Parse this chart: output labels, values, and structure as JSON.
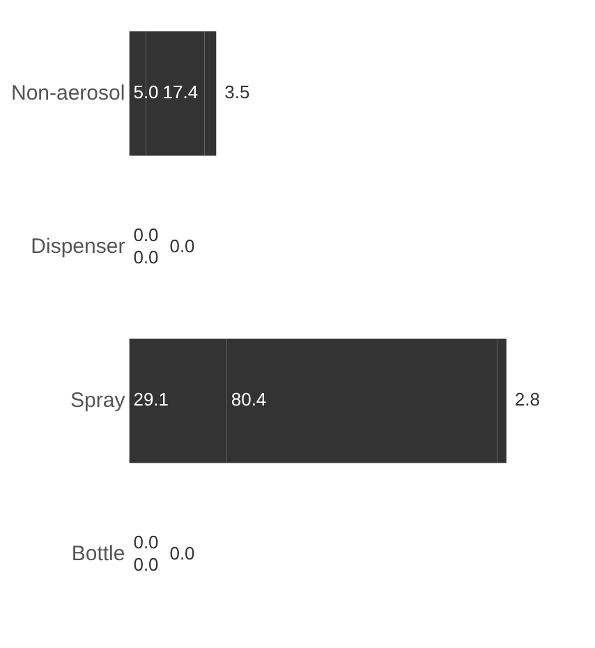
{
  "chart_data": {
    "type": "bar",
    "orientation": "horizontal",
    "stacked": true,
    "legend": false,
    "tick_labels": "y",
    "categories": [
      "Non-aerosol",
      "Dispenser",
      "Spray",
      "Bottle"
    ],
    "series": [
      {
        "color": "#333333",
        "values": [
          5.0,
          0.0,
          29.1,
          0.0
        ],
        "value_labels": [
          "5.0",
          "0.0",
          "29.1",
          "0.0"
        ]
      },
      {
        "color": "#333333",
        "values": [
          17.4,
          0.0,
          80.4,
          0.0
        ],
        "value_labels": [
          "17.4",
          "0.0",
          "80.4",
          "0.0"
        ]
      },
      {
        "color": "#333333",
        "values": [
          3.5,
          0.0,
          2.8,
          0.0
        ],
        "value_labels": [
          "3.5",
          "0.0",
          "2.8",
          "0.0"
        ]
      }
    ]
  }
}
